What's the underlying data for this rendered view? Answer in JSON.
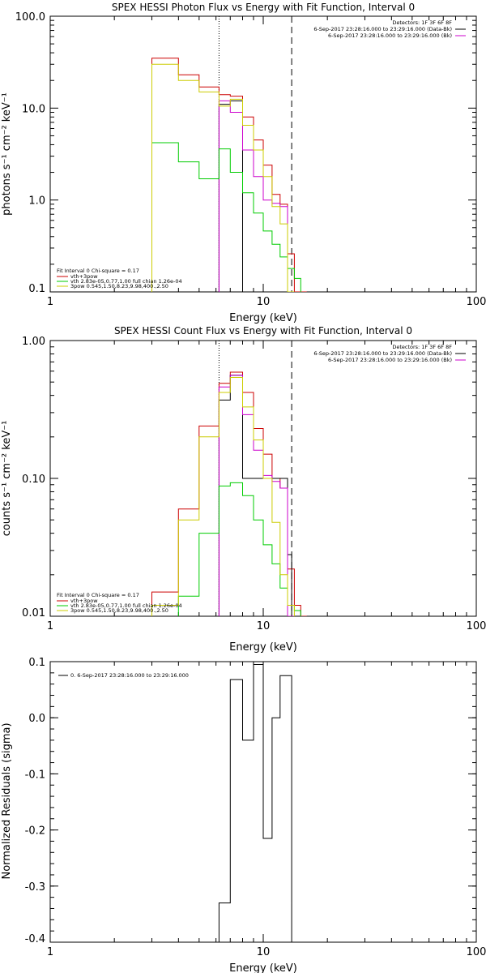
{
  "chart_data": [
    {
      "type": "line",
      "title": "SPEX HESSI Photon Flux vs Energy with Fit Function, Interval 0",
      "xlabel": "Energy (keV)",
      "ylabel": "photons s⁻¹ cm⁻² keV⁻¹",
      "xscale": "log",
      "yscale": "log",
      "xlim": [
        1,
        100
      ],
      "ylim": [
        0.1,
        100
      ],
      "x_ticks": [
        1,
        10,
        100
      ],
      "x_tick_labels": [
        "1",
        "10",
        "100"
      ],
      "y_ticks": [
        0.1,
        1,
        10,
        100
      ],
      "y_tick_labels": [
        "0.1",
        "1.0",
        "10.0",
        "100.0"
      ],
      "vlines": [
        {
          "x": 6.2,
          "style": "dotted",
          "color": "#000000"
        },
        {
          "x": 13.6,
          "style": "dashed",
          "color": "#000000"
        }
      ],
      "info_right": [
        "Detectors: 1F 3F 6F 8F",
        "6-Sep-2017 23:28:16.000 to 23:29:16.000 (Data-Bk)",
        "6-Sep-2017 23:28:16.000 to 23:29:16.000 (Bk)"
      ],
      "info_left": [
        "Fit Interval 0   Chi-square = 0.17",
        "vth+3pow",
        "vth 2.83e-05,0.77,1.00  full chian 1.26e-04",
        "3pow 0.545,1.50,8.23,9.98,400.,2.50"
      ],
      "series": [
        {
          "name": "vth+3pow",
          "color": "#cc0000",
          "edges": [
            3.0,
            4.0,
            5.0,
            6.2,
            7.0,
            8.0,
            9.0,
            10.0,
            11.0,
            12.0,
            13.0,
            14.0,
            16.0
          ],
          "values": [
            35,
            23,
            17,
            14,
            13.5,
            8,
            4.5,
            2.4,
            1.15,
            0.9,
            0.26,
            0.1
          ]
        },
        {
          "name": "Data-Bk",
          "color": "#000000",
          "edges": [
            6.2,
            7.0,
            8.0
          ],
          "values": [
            11,
            12
          ]
        },
        {
          "name": "Bk",
          "color": "#cc00cc",
          "edges": [
            6.2,
            7.0,
            8.0,
            9.0,
            10.0,
            11.0,
            12.0,
            13.0,
            14.0
          ],
          "values": [
            12,
            9,
            3.5,
            1.8,
            1.0,
            0.92,
            0.85,
            0.1
          ]
        },
        {
          "name": "vth",
          "color": "#00cc00",
          "edges": [
            3.0,
            4.0,
            5.0,
            6.2,
            7.0,
            8.0,
            9.0,
            10.0,
            11.0,
            12.0,
            13.0,
            14.0,
            15.0
          ],
          "values": [
            4.2,
            2.6,
            1.7,
            3.6,
            2.0,
            1.2,
            0.72,
            0.46,
            0.33,
            0.24,
            0.18,
            0.14
          ]
        },
        {
          "name": "3pow",
          "color": "#cccc00",
          "edges": [
            3.0,
            4.0,
            5.0,
            6.2,
            7.0,
            8.0,
            9.0,
            10.0,
            11.0,
            12.0,
            13.0,
            14.0
          ],
          "values": [
            30,
            20,
            15,
            10.5,
            12.5,
            6.5,
            3.5,
            1.8,
            0.85,
            0.55,
            0.1
          ]
        }
      ]
    },
    {
      "type": "line",
      "title": "SPEX HESSI Count Flux vs Energy with Fit Function, Interval 0",
      "xlabel": "Energy (keV)",
      "ylabel": "counts s⁻¹ cm⁻² keV⁻¹",
      "xscale": "log",
      "yscale": "log",
      "xlim": [
        1,
        100
      ],
      "ylim": [
        0.01,
        1
      ],
      "x_ticks": [
        1,
        10,
        100
      ],
      "x_tick_labels": [
        "1",
        "10",
        "100"
      ],
      "y_ticks": [
        0.01,
        0.1,
        1
      ],
      "y_tick_labels": [
        "0.01",
        "0.10",
        "1.00"
      ],
      "vlines": [
        {
          "x": 6.2,
          "style": "dotted",
          "color": "#000000"
        },
        {
          "x": 13.6,
          "style": "dashed",
          "color": "#000000"
        }
      ],
      "info_right": [
        "Detectors: 1F 3F 6F 8F",
        "6-Sep-2017 23:28:16.000 to 23:29:16.000 (Data-Bk)",
        "6-Sep-2017 23:28:16.000 to 23:29:16.000 (Bk)"
      ],
      "info_left": [
        "Fit Interval 0   Chi-square = 0.17",
        "vth+3pow",
        "vth 2.83e-05,0.77,1.00  full chian 1.26e-04",
        "3pow 0.545,1.50,8.23,9.98,400.,2.50"
      ],
      "series": [
        {
          "name": "vth+3pow",
          "color": "#cc0000",
          "edges": [
            3.0,
            4.0,
            5.0,
            6.2,
            7.0,
            8.0,
            9.0,
            10.0,
            11.0,
            12.0,
            13.0,
            14.0,
            15.0,
            16.0
          ],
          "values": [
            0.015,
            0.06,
            0.24,
            0.49,
            0.59,
            0.42,
            0.23,
            0.15,
            0.1,
            0.085,
            0.022,
            0.012,
            0.01
          ]
        },
        {
          "name": "Data-Bk",
          "color": "#000000",
          "edges": [
            6.2,
            7.0,
            8.0,
            13.0,
            13.6
          ],
          "values": [
            0.37,
            0.56,
            0.1,
            0.028
          ]
        },
        {
          "name": "Bk",
          "color": "#cc00cc",
          "edges": [
            6.2,
            7.0,
            8.0,
            9.0,
            10.0,
            11.0,
            12.0,
            13.0,
            14.0
          ],
          "values": [
            0.46,
            0.56,
            0.29,
            0.16,
            0.105,
            0.095,
            0.085,
            0.01
          ]
        },
        {
          "name": "vth",
          "color": "#00cc00",
          "edges": [
            4.0,
            5.0,
            6.2,
            7.0,
            8.0,
            9.0,
            10.0,
            11.0,
            12.0,
            13.0,
            14.0,
            15.0
          ],
          "values": [
            0.014,
            0.04,
            0.088,
            0.093,
            0.075,
            0.05,
            0.033,
            0.024,
            0.016,
            0.012,
            0.011
          ]
        },
        {
          "name": "3pow",
          "color": "#cccc00",
          "edges": [
            3.0,
            4.0,
            5.0,
            6.2,
            7.0,
            8.0,
            9.0,
            10.0,
            11.0,
            12.0,
            13.0,
            14.0
          ],
          "values": [
            0.012,
            0.05,
            0.2,
            0.42,
            0.54,
            0.33,
            0.19,
            0.1,
            0.048,
            0.02,
            0.012
          ]
        }
      ]
    },
    {
      "type": "line",
      "title": "",
      "xlabel": "Energy (keV)",
      "ylabel": "Normalized Residuals (sigma)",
      "xscale": "log",
      "yscale": "linear",
      "xlim": [
        1,
        100
      ],
      "ylim": [
        -0.4,
        0.1
      ],
      "x_ticks": [
        1,
        10,
        100
      ],
      "x_tick_labels": [
        "1",
        "10",
        "100"
      ],
      "y_ticks": [
        -0.4,
        -0.3,
        -0.2,
        -0.1,
        0.0,
        0.1
      ],
      "y_tick_labels": [
        "-0.4",
        "-0.3",
        "-0.2",
        "-0.1",
        "0.0",
        "0.1"
      ],
      "legend": [
        "0.  6-Sep-2017 23:28:16.000 to 23:29:16.000"
      ],
      "series": [
        {
          "color": "#000000",
          "edges": [
            6.2,
            7.0,
            8.0,
            9.0,
            10.0,
            11.0,
            12.0,
            13.6
          ],
          "values": [
            -0.33,
            0.068,
            -0.04,
            0.095,
            -0.215,
            0.0,
            0.075
          ]
        }
      ]
    }
  ]
}
